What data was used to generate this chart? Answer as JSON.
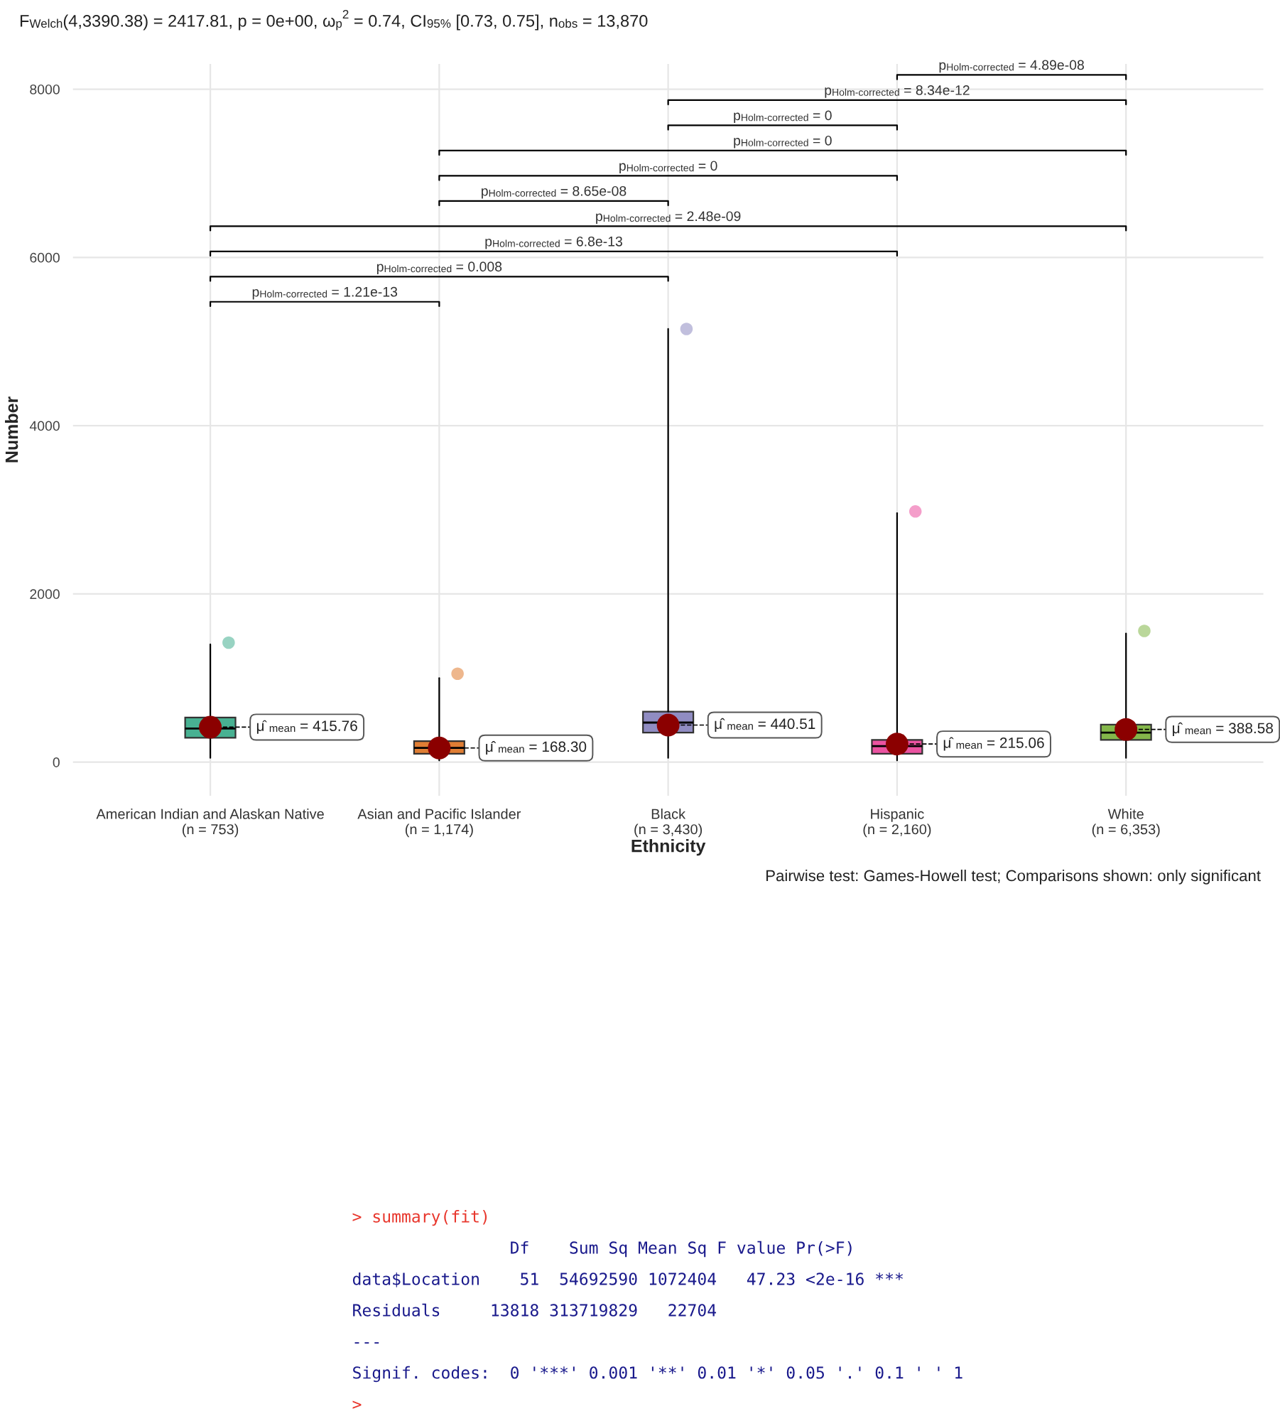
{
  "chart_data": {
    "type": "box",
    "title": "F$_{Welch}$(4,3390.38) = 2417.81, p = 0e+00, ω$_{p}$$^{2}$ = 0.74, CI$_{95%}$ [0.73, 0.75], n$_{obs}$ = 13,870",
    "xlabel": "Ethnicity",
    "ylabel": "Number",
    "categories": [
      "American Indian and Alaskan Native\n(n = 753)",
      "Asian and Pacific Islander\n(n = 1,174)",
      "Black\n(n = 3,430)",
      "Hispanic\n(n = 2,160)",
      "White\n(n = 6,353)"
    ],
    "colors": [
      "#1b9e77",
      "#d95f02",
      "#7570b3",
      "#e7298a",
      "#66a61e"
    ],
    "boxes": [
      {
        "low": 50,
        "q1": 290,
        "median": 400,
        "q3": 530,
        "high": 1400,
        "mean": 415.76,
        "outliers": [
          1420
        ]
      },
      {
        "low": 20,
        "q1": 100,
        "median": 170,
        "q3": 250,
        "high": 1000,
        "mean": 168.3,
        "outliers": [
          1050
        ]
      },
      {
        "low": 50,
        "q1": 350,
        "median": 470,
        "q3": 600,
        "high": 5150,
        "mean": 440.51,
        "outliers": [
          5150
        ]
      },
      {
        "low": 20,
        "q1": 100,
        "median": 190,
        "q3": 265,
        "high": 2960,
        "mean": 215.06,
        "outliers": [
          2980
        ]
      },
      {
        "low": 50,
        "q1": 265,
        "median": 350,
        "q3": 445,
        "high": 1530,
        "mean": 388.58,
        "outliers": [
          1560
        ]
      }
    ],
    "ylim": [
      -400,
      8300
    ],
    "yticks": [
      0,
      2000,
      4000,
      6000,
      8000
    ],
    "grid": true,
    "annotations": [
      "p$_{Holm-corrected}$ = 1.21e-13",
      "p$_{Holm-corrected}$ = 0.008",
      "p$_{Holm-corrected}$ = 6.8e-13",
      "p$_{Holm-corrected}$ = 2.48e-09",
      "p$_{Holm-corrected}$ = 8.65e-08",
      "p$_{Holm-corrected}$ = 0",
      "p$_{Holm-corrected}$ = 0",
      "p$_{Holm-corrected}$ = 0",
      "p$_{Holm-corrected}$ = 8.34e-12",
      "p$_{Holm-corrected}$ = 4.89e-08",
      "μ̂$_{mean}$ = 415.76",
      "μ̂$_{mean}$ = 168.30",
      "μ̂$_{mean}$ = 440.51",
      "μ̂$_{mean}$ = 215.06",
      "μ̂$_{mean}$ = 388.58",
      "Pairwise test: Games-Howell test; Comparisons shown: only significant",
      "> summary(fit)",
      "                Df    Sum Sq Mean Sq F value Pr(>F)",
      "data$Location    51  54692590 1072404   47.23 <2e-16 ***",
      "Residuals     13818 313719829   22704",
      "---",
      "Signif. codes:  0 '***' 0.001 '**' 0.01 '*' 0.05 '.' 0.1 ' ' 1",
      ">"
    ]
  }
}
